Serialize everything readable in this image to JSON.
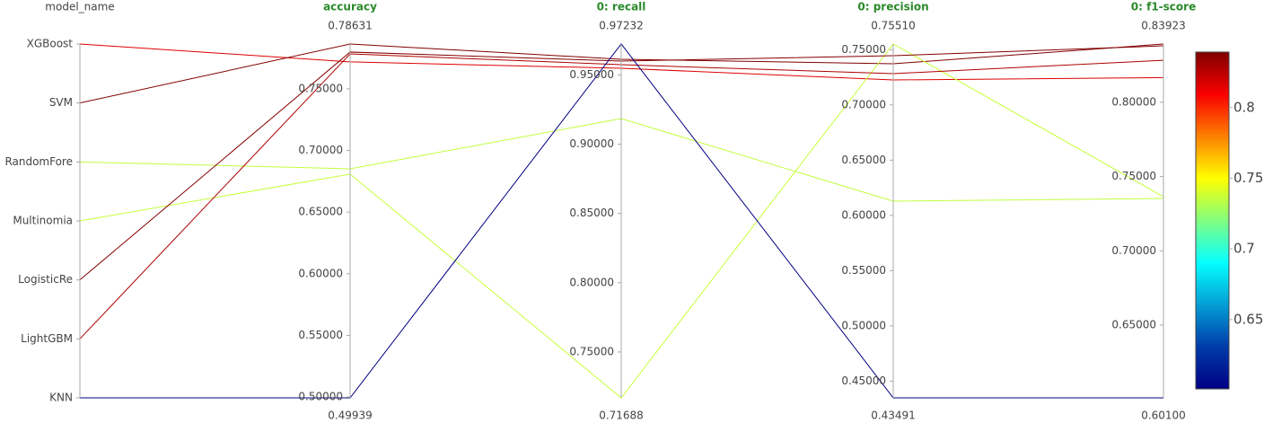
{
  "chart_data": {
    "type": "parcoords",
    "categories": [
      "XGBoost",
      "SVM",
      "RandomFore",
      "Multinomia",
      "LogisticRe",
      "LightGBM",
      "KNN"
    ],
    "category_label": "model_name",
    "dimensions": [
      {
        "label": "accuracy",
        "ylim": [
          0.49939,
          0.78631
        ],
        "yticks": [
          {
            "value": 0.5,
            "label": "0.50000"
          },
          {
            "value": 0.55,
            "label": "0.55000"
          },
          {
            "value": 0.6,
            "label": "0.60000"
          },
          {
            "value": 0.65,
            "label": "0.65000"
          },
          {
            "value": 0.7,
            "label": "0.70000"
          },
          {
            "value": 0.75,
            "label": "0.75000"
          }
        ],
        "values": [
          0.7718,
          0.78631,
          0.6851,
          0.6808,
          0.7798,
          0.7783,
          0.49939
        ]
      },
      {
        "label": "0: recall",
        "ylim": [
          0.71688,
          0.97232
        ],
        "yticks": [
          {
            "value": 0.75,
            "label": "0.75000"
          },
          {
            "value": 0.8,
            "label": "0.80000"
          },
          {
            "value": 0.85,
            "label": "0.85000"
          },
          {
            "value": 0.9,
            "label": "0.90000"
          },
          {
            "value": 0.95,
            "label": "0.95000"
          }
        ],
        "values": [
          0.9548,
          0.9613,
          0.9185,
          0.71688,
          0.96,
          0.9574,
          0.97232
        ]
      },
      {
        "label": "0: precision",
        "ylim": [
          0.43491,
          {
            "value": 0.7551,
            "label": "0.75510"
          }
        ],
        "yticks": [
          {
            "value": 0.45,
            "label": "0.45000"
          },
          {
            "value": 0.5,
            "label": "0.50000"
          },
          {
            "value": 0.55,
            "label": "0.55000"
          },
          {
            "value": 0.6,
            "label": "0.60000"
          },
          {
            "value": 0.65,
            "label": "0.65000"
          },
          {
            "value": 0.7,
            "label": "0.70000"
          },
          {
            "value": 0.75,
            "label": "0.75000"
          }
        ],
        "values": [
          0.7226,
          0.7372,
          0.6129,
          0.7551,
          0.7445,
          0.7283,
          0.43491
        ]
      },
      {
        "label": "0: f1-score",
        "ylim": [
          {
            "value": 0.601,
            "label": "0.60100"
          },
          0.83923
        ],
        "yticks": [
          {
            "value": 0.65,
            "label": "0.65000"
          },
          {
            "value": 0.7,
            "label": "0.70000"
          },
          {
            "value": 0.75,
            "label": "0.75000"
          },
          {
            "value": 0.8,
            "label": "0.80000"
          }
        ],
        "values": [
          0.8166,
          0.83923,
          0.7352,
          0.7364,
          0.838,
          0.8283,
          0.601
        ]
      }
    ],
    "color_dimension": 3,
    "colorscale": [
      [
        0,
        "#000083"
      ],
      [
        0.125,
        "#003caa"
      ],
      [
        0.375,
        "#05ffff"
      ],
      [
        0.625,
        "#ffff00"
      ],
      [
        0.875,
        "#fa0000"
      ],
      [
        1,
        "#800000"
      ]
    ],
    "colorbar_ticks": [
      0.65,
      0.7,
      0.75,
      0.8
    ]
  }
}
